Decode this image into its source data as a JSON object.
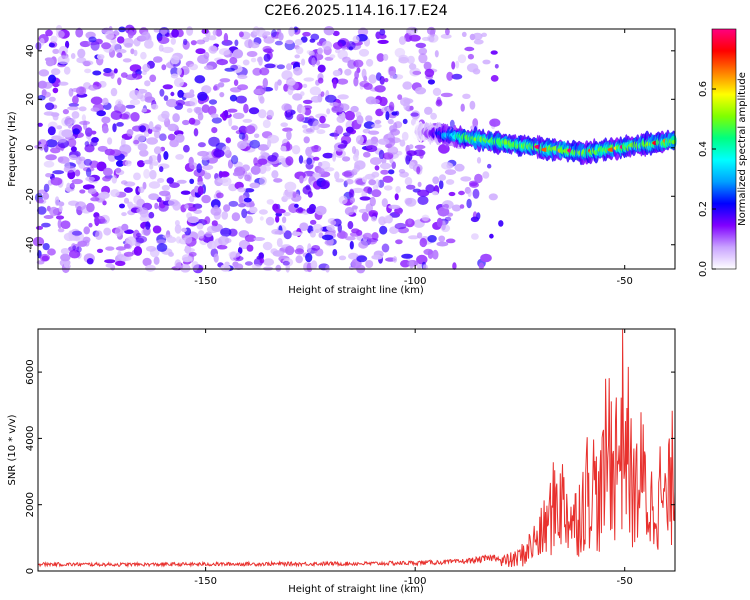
{
  "title": "C2E6.2025.114.16.17.E24",
  "chart_data": [
    {
      "type": "heatmap",
      "xlabel": "Height of straight line (km)",
      "ylabel": "Frequency (Hz)",
      "xlim": [
        -190,
        -38
      ],
      "ylim": [
        -50,
        49
      ],
      "xticks": [
        -150,
        -100,
        -50
      ],
      "yticks": [
        -40,
        -20,
        0,
        20,
        40
      ],
      "colorbar": {
        "label": "Normalized spectral amplitude",
        "range": [
          0.0,
          0.8
        ],
        "ticks": [
          0.0,
          0.2,
          0.4,
          0.6
        ],
        "tick_labels": [
          "0.0",
          "0.2",
          "0.4",
          "0.6"
        ],
        "colors": [
          "#ffffff",
          "#c9a3ff",
          "#8000ff",
          "#0000ff",
          "#00a0ff",
          "#00ffff",
          "#00ff80",
          "#80ff00",
          "#ffff00",
          "#ff8000",
          "#ff0000",
          "#ff0080"
        ]
      },
      "noise_region_x": [
        -190,
        -95
      ],
      "signal_band": {
        "start_x": -100,
        "end_x": -38,
        "center_freq_at_start": 7,
        "center_freq_at_-75": 1,
        "center_freq_at_-60": -2,
        "center_freq_at_end": 3,
        "peak_amplitude": 0.8
      }
    },
    {
      "type": "line",
      "xlabel": "Height of straight line (km)",
      "ylabel": "SNR (10 * v/v)",
      "xlim": [
        -190,
        -38
      ],
      "ylim": [
        0,
        7300
      ],
      "xticks": [
        -150,
        -100,
        -50
      ],
      "yticks": [
        0,
        2000,
        4000,
        6000
      ],
      "color": "#e8312e",
      "series": [
        {
          "name": "SNR",
          "x": [
            -190,
            -170,
            -150,
            -130,
            -110,
            -100,
            -90,
            -85,
            -80,
            -76,
            -74,
            -72,
            -70,
            -68,
            -66,
            -64,
            -62,
            -60,
            -58,
            -56,
            -54,
            -52,
            -50,
            -48,
            -46,
            -44,
            -42,
            -40,
            -38
          ],
          "y": [
            200,
            190,
            200,
            210,
            220,
            240,
            270,
            330,
            420,
            560,
            850,
            1300,
            1700,
            2500,
            3600,
            3000,
            2300,
            3300,
            4500,
            3100,
            6100,
            5300,
            7300,
            3500,
            4600,
            2900,
            3900,
            3000,
            5200
          ]
        }
      ]
    }
  ]
}
